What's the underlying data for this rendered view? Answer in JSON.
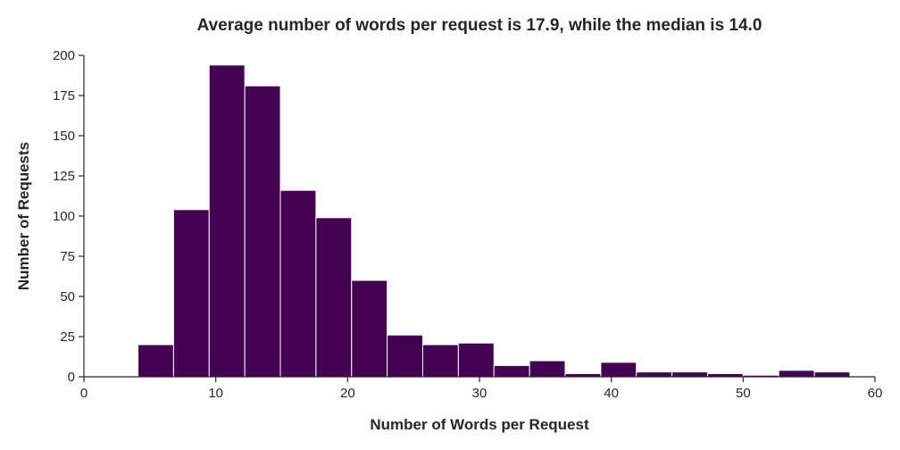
{
  "chart_data": {
    "type": "bar",
    "title": "Average number of words per request is 17.9, while the median is 14.0",
    "xlabel": "Number of Words per Request",
    "ylabel": "Number of Requests",
    "xlim": [
      0,
      60
    ],
    "ylim": [
      0,
      200
    ],
    "xticks": [
      0,
      10,
      20,
      30,
      40,
      50,
      60
    ],
    "yticks": [
      0,
      25,
      50,
      75,
      100,
      125,
      150,
      175,
      200
    ],
    "bin_edges": [
      4.1,
      6.8,
      9.5,
      12.2,
      14.9,
      17.6,
      20.3,
      23.0,
      25.7,
      28.4,
      31.1,
      33.8,
      36.5,
      39.2,
      41.9,
      44.6,
      47.3,
      50.0,
      52.7,
      55.4,
      58.1
    ],
    "values": [
      20,
      104,
      194,
      181,
      116,
      99,
      60,
      26,
      20,
      21,
      7,
      10,
      2,
      9,
      3,
      3,
      2,
      1,
      4,
      3
    ],
    "grid": false,
    "legend": "none",
    "bar_color": "#440154"
  }
}
